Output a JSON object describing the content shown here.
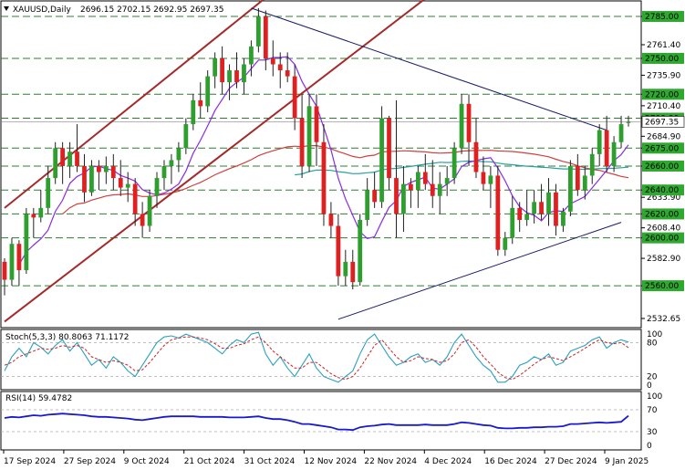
{
  "header": {
    "symbol": "XAUUSD,Daily",
    "ohlc": "2696.15 2702.15 2692.95 2697.35"
  },
  "colors": {
    "bull": "#2e9e2e",
    "bear": "#e02020",
    "grid_dash": "#2e7d32",
    "price_tag_bg": "#2ea82e",
    "sma_fast": "#8a2be2",
    "sma_mid": "#d04040",
    "sma_slow": "#2aa0a0",
    "channel": "#a52a2a",
    "trend": "#1a1a66",
    "stoch_main": "#2aa0c0",
    "stoch_signal": "#cc2222",
    "rsi": "#1a1acc"
  },
  "chart_data": [
    {
      "type": "candlestick",
      "title": "XAUUSD,Daily",
      "ylim": [
        2525,
        2798
      ],
      "price_axis_labels": [
        "2785.00",
        "2761.40",
        "2750.00",
        "2735.90",
        "2720.00",
        "2710.40",
        "2700.00",
        "2684.90",
        "2675.00",
        "2660.00",
        "2640.00",
        "2633.90",
        "2620.00",
        "2608.40",
        "2600.00",
        "2582.90",
        "2560.00",
        "2532.65"
      ],
      "highlighted_levels": [
        2785,
        2750,
        2720,
        2700,
        2675,
        2660,
        2640,
        2620,
        2600,
        2560
      ],
      "x_tick_labels": [
        "17 Sep 2024",
        "27 Sep 2024",
        "9 Oct 2024",
        "21 Oct 2024",
        "31 Oct 2024",
        "12 Nov 2024",
        "22 Nov 2024",
        "4 Dec 2024",
        "16 Dec 2024",
        "27 Dec 2024",
        "9 Jan 2025"
      ],
      "candles": [
        [
          2580,
          2583,
          2552,
          2565
        ],
        [
          2565,
          2600,
          2560,
          2595
        ],
        [
          2595,
          2598,
          2560,
          2573
        ],
        [
          2573,
          2625,
          2570,
          2620
        ],
        [
          2620,
          2625,
          2600,
          2617
        ],
        [
          2617,
          2640,
          2613,
          2625
        ],
        [
          2625,
          2660,
          2620,
          2650
        ],
        [
          2650,
          2680,
          2645,
          2675
        ],
        [
          2675,
          2680,
          2645,
          2660
        ],
        [
          2660,
          2680,
          2650,
          2672
        ],
        [
          2672,
          2695,
          2655,
          2660
        ],
        [
          2660,
          2670,
          2630,
          2638
        ],
        [
          2638,
          2665,
          2635,
          2660
        ],
        [
          2660,
          2665,
          2640,
          2655
        ],
        [
          2655,
          2668,
          2645,
          2660
        ],
        [
          2660,
          2670,
          2640,
          2650
        ],
        [
          2650,
          2665,
          2635,
          2642
        ],
        [
          2642,
          2655,
          2630,
          2645
        ],
        [
          2645,
          2650,
          2610,
          2620
        ],
        [
          2620,
          2630,
          2600,
          2610
        ],
        [
          2610,
          2640,
          2605,
          2635
        ],
        [
          2635,
          2655,
          2625,
          2650
        ],
        [
          2650,
          2665,
          2640,
          2660
        ],
        [
          2660,
          2670,
          2645,
          2665
        ],
        [
          2665,
          2680,
          2655,
          2675
        ],
        [
          2675,
          2700,
          2670,
          2695
        ],
        [
          2695,
          2720,
          2690,
          2715
        ],
        [
          2715,
          2730,
          2700,
          2710
        ],
        [
          2710,
          2740,
          2705,
          2735
        ],
        [
          2735,
          2755,
          2725,
          2750
        ],
        [
          2750,
          2760,
          2720,
          2730
        ],
        [
          2730,
          2745,
          2715,
          2740
        ],
        [
          2740,
          2755,
          2725,
          2730
        ],
        [
          2730,
          2750,
          2720,
          2745
        ],
        [
          2745,
          2765,
          2735,
          2760
        ],
        [
          2760,
          2792,
          2755,
          2785
        ],
        [
          2785,
          2790,
          2740,
          2750
        ],
        [
          2750,
          2765,
          2735,
          2745
        ],
        [
          2745,
          2755,
          2725,
          2740
        ],
        [
          2740,
          2755,
          2730,
          2735
        ],
        [
          2735,
          2745,
          2690,
          2700
        ],
        [
          2700,
          2720,
          2650,
          2660
        ],
        [
          2660,
          2720,
          2655,
          2710
        ],
        [
          2710,
          2720,
          2660,
          2680
        ],
        [
          2680,
          2695,
          2610,
          2620
        ],
        [
          2620,
          2630,
          2600,
          2610
        ],
        [
          2610,
          2620,
          2560,
          2568
        ],
        [
          2568,
          2590,
          2560,
          2580
        ],
        [
          2580,
          2590,
          2557,
          2563
        ],
        [
          2563,
          2620,
          2560,
          2615
        ],
        [
          2615,
          2650,
          2610,
          2640
        ],
        [
          2640,
          2655,
          2625,
          2630
        ],
        [
          2630,
          2710,
          2625,
          2700
        ],
        [
          2700,
          2702,
          2640,
          2650
        ],
        [
          2650,
          2715,
          2600,
          2620
        ],
        [
          2620,
          2660,
          2605,
          2645
        ],
        [
          2645,
          2650,
          2625,
          2640
        ],
        [
          2640,
          2660,
          2625,
          2655
        ],
        [
          2655,
          2670,
          2640,
          2645
        ],
        [
          2645,
          2665,
          2625,
          2635
        ],
        [
          2635,
          2655,
          2620,
          2645
        ],
        [
          2645,
          2660,
          2635,
          2650
        ],
        [
          2650,
          2680,
          2645,
          2675
        ],
        [
          2675,
          2720,
          2670,
          2712
        ],
        [
          2712,
          2720,
          2660,
          2680
        ],
        [
          2680,
          2700,
          2650,
          2655
        ],
        [
          2655,
          2668,
          2640,
          2645
        ],
        [
          2645,
          2660,
          2625,
          2652
        ],
        [
          2652,
          2660,
          2585,
          2590
        ],
        [
          2590,
          2605,
          2585,
          2600
        ],
        [
          2600,
          2635,
          2595,
          2625
        ],
        [
          2625,
          2630,
          2605,
          2615
        ],
        [
          2615,
          2640,
          2610,
          2620
        ],
        [
          2620,
          2640,
          2612,
          2630
        ],
        [
          2630,
          2645,
          2615,
          2620
        ],
        [
          2620,
          2650,
          2610,
          2638
        ],
        [
          2638,
          2645,
          2602,
          2610
        ],
        [
          2610,
          2625,
          2605,
          2622
        ],
        [
          2622,
          2665,
          2618,
          2660
        ],
        [
          2660,
          2670,
          2635,
          2640
        ],
        [
          2640,
          2660,
          2632,
          2652
        ],
        [
          2652,
          2675,
          2645,
          2670
        ],
        [
          2670,
          2695,
          2660,
          2690
        ],
        [
          2690,
          2702,
          2655,
          2660
        ],
        [
          2660,
          2685,
          2655,
          2680
        ],
        [
          2680,
          2702,
          2675,
          2695
        ],
        [
          2696,
          2702,
          2693,
          2697
        ]
      ]
    },
    {
      "type": "line",
      "title": "Stoch(5,3,3) 80.8063 71.1172",
      "ylim": [
        0,
        100
      ],
      "levels": [
        80,
        20
      ],
      "axis_labels": [
        "100",
        "80",
        "20",
        "0"
      ],
      "series": [
        {
          "name": "main",
          "values": [
            30,
            55,
            70,
            55,
            80,
            72,
            60,
            75,
            85,
            65,
            80,
            60,
            40,
            50,
            35,
            55,
            45,
            30,
            20,
            40,
            60,
            80,
            90,
            92,
            88,
            95,
            90,
            85,
            80,
            70,
            60,
            75,
            85,
            80,
            95,
            98,
            60,
            40,
            55,
            35,
            20,
            40,
            60,
            35,
            20,
            15,
            10,
            20,
            30,
            60,
            85,
            95,
            75,
            55,
            40,
            45,
            55,
            60,
            45,
            50,
            40,
            55,
            80,
            95,
            75,
            55,
            40,
            30,
            10,
            10,
            20,
            40,
            45,
            55,
            50,
            60,
            40,
            45,
            65,
            70,
            75,
            85,
            90,
            70,
            80,
            85,
            81
          ]
        },
        {
          "name": "signal",
          "values": [
            40,
            45,
            55,
            60,
            65,
            70,
            68,
            70,
            75,
            72,
            75,
            70,
            55,
            50,
            45,
            48,
            45,
            40,
            30,
            32,
            45,
            60,
            75,
            85,
            88,
            90,
            90,
            88,
            85,
            78,
            70,
            70,
            75,
            78,
            85,
            90,
            80,
            65,
            55,
            45,
            35,
            35,
            45,
            45,
            35,
            25,
            18,
            15,
            20,
            35,
            55,
            75,
            85,
            70,
            55,
            45,
            48,
            55,
            52,
            50,
            45,
            48,
            60,
            80,
            85,
            72,
            55,
            42,
            28,
            18,
            15,
            22,
            32,
            42,
            50,
            55,
            52,
            48,
            55,
            62,
            70,
            78,
            85,
            80,
            78,
            80,
            71
          ]
        }
      ]
    },
    {
      "type": "line",
      "title": "RSI(14) 59.4782",
      "ylim": [
        0,
        100
      ],
      "levels": [
        70,
        30
      ],
      "axis_labels": [
        "100",
        "70",
        "30",
        "0"
      ],
      "series": [
        {
          "name": "RSI",
          "values": [
            55,
            57,
            56,
            58,
            60,
            59,
            61,
            62,
            63,
            62,
            61,
            60,
            58,
            57,
            57,
            56,
            55,
            54,
            52,
            51,
            53,
            55,
            57,
            58,
            58,
            58,
            58,
            57,
            57,
            57,
            57,
            56,
            56,
            56,
            57,
            58,
            55,
            53,
            53,
            51,
            48,
            44,
            44,
            42,
            40,
            38,
            34,
            34,
            33,
            38,
            40,
            41,
            43,
            44,
            42,
            42,
            42,
            42,
            43,
            42,
            42,
            42,
            44,
            47,
            46,
            44,
            42,
            41,
            37,
            36,
            36,
            37,
            37,
            38,
            38,
            39,
            39,
            40,
            44,
            44,
            45,
            46,
            47,
            46,
            47,
            48,
            59
          ]
        }
      ]
    }
  ],
  "price_tags": [
    {
      "label": "2700.00"
    },
    {
      "label": "2697.35"
    }
  ]
}
